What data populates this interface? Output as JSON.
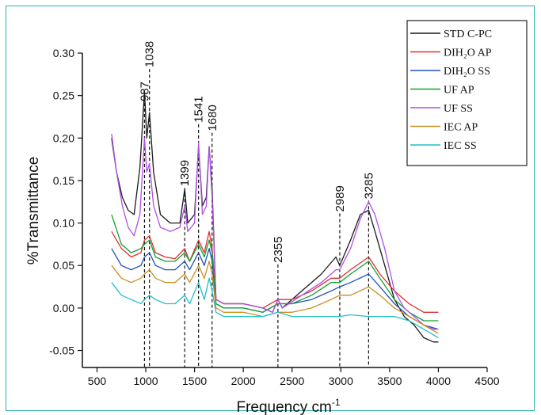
{
  "chart_data": {
    "type": "line",
    "xlabel": "Frequency cm",
    "xlabel_sup": "-1",
    "ylabel": "%Transmittance",
    "xlim": [
      350,
      4500
    ],
    "ylim": [
      -0.07,
      0.3
    ],
    "x_ticks": [
      "500",
      "1000",
      "1500",
      "2000",
      "2500",
      "3000",
      "3500",
      "4000",
      "4500"
    ],
    "x_tick_values": [
      500,
      1000,
      1500,
      2000,
      2500,
      3000,
      3500,
      4000,
      4500
    ],
    "y_ticks": [
      "0.30",
      "0.25",
      "0.20",
      "0.15",
      "0.10",
      "0.05",
      "0.00",
      "-0.05"
    ],
    "y_tick_values": [
      0.3,
      0.25,
      0.2,
      0.15,
      0.1,
      0.05,
      0.0,
      -0.05
    ],
    "peaks": [
      {
        "label": "987",
        "x": 987,
        "label_y": 0.245
      },
      {
        "label": "1038",
        "x": 1038,
        "label_y": 0.285
      },
      {
        "label": "1399",
        "x": 1399,
        "label_y": 0.145
      },
      {
        "label": "1541",
        "x": 1541,
        "label_y": 0.22
      },
      {
        "label": "1680",
        "x": 1680,
        "label_y": 0.21
      },
      {
        "label": "2355",
        "x": 2355,
        "label_y": 0.055
      },
      {
        "label": "2989",
        "x": 2989,
        "label_y": 0.115
      },
      {
        "label": "3285",
        "x": 3285,
        "label_y": 0.13
      }
    ],
    "series": [
      {
        "name": "STD C-PC",
        "color": "#1a1a1a",
        "points": [
          [
            650,
            0.2
          ],
          [
            700,
            0.16
          ],
          [
            760,
            0.13
          ],
          [
            820,
            0.115
          ],
          [
            880,
            0.11
          ],
          [
            940,
            0.165
          ],
          [
            987,
            0.255
          ],
          [
            1010,
            0.2
          ],
          [
            1038,
            0.23
          ],
          [
            1080,
            0.16
          ],
          [
            1150,
            0.11
          ],
          [
            1250,
            0.1
          ],
          [
            1350,
            0.1
          ],
          [
            1399,
            0.14
          ],
          [
            1430,
            0.1
          ],
          [
            1500,
            0.11
          ],
          [
            1541,
            0.19
          ],
          [
            1580,
            0.12
          ],
          [
            1620,
            0.13
          ],
          [
            1650,
            0.19
          ],
          [
            1680,
            0.14
          ],
          [
            1720,
            0.01
          ],
          [
            1800,
            0.005
          ],
          [
            2000,
            0.005
          ],
          [
            2200,
            0.0
          ],
          [
            2300,
            -0.005
          ],
          [
            2355,
            0.01
          ],
          [
            2400,
            0.0
          ],
          [
            2600,
            0.02
          ],
          [
            2800,
            0.04
          ],
          [
            2950,
            0.06
          ],
          [
            2989,
            0.05
          ],
          [
            3100,
            0.08
          ],
          [
            3200,
            0.11
          ],
          [
            3285,
            0.115
          ],
          [
            3350,
            0.09
          ],
          [
            3450,
            0.05
          ],
          [
            3550,
            0.01
          ],
          [
            3650,
            -0.01
          ],
          [
            3750,
            -0.02
          ],
          [
            3850,
            -0.035
          ],
          [
            3950,
            -0.04
          ],
          [
            4000,
            -0.04
          ]
        ]
      },
      {
        "name": "DIH₂O AP",
        "color": "#e03030",
        "points": [
          [
            650,
            0.09
          ],
          [
            750,
            0.07
          ],
          [
            850,
            0.06
          ],
          [
            950,
            0.065
          ],
          [
            987,
            0.08
          ],
          [
            1038,
            0.085
          ],
          [
            1100,
            0.065
          ],
          [
            1200,
            0.06
          ],
          [
            1300,
            0.058
          ],
          [
            1399,
            0.07
          ],
          [
            1450,
            0.055
          ],
          [
            1541,
            0.08
          ],
          [
            1600,
            0.065
          ],
          [
            1650,
            0.09
          ],
          [
            1680,
            0.07
          ],
          [
            1720,
            0.01
          ],
          [
            1800,
            0.005
          ],
          [
            2000,
            0.005
          ],
          [
            2200,
            0.0
          ],
          [
            2355,
            0.01
          ],
          [
            2500,
            0.01
          ],
          [
            2700,
            0.02
          ],
          [
            2900,
            0.035
          ],
          [
            2989,
            0.035
          ],
          [
            3100,
            0.045
          ],
          [
            3285,
            0.06
          ],
          [
            3400,
            0.04
          ],
          [
            3550,
            0.02
          ],
          [
            3700,
            0.005
          ],
          [
            3850,
            -0.005
          ],
          [
            4000,
            -0.005
          ]
        ]
      },
      {
        "name": "DIH₂O SS",
        "color": "#2050c0",
        "points": [
          [
            650,
            0.07
          ],
          [
            750,
            0.05
          ],
          [
            850,
            0.045
          ],
          [
            950,
            0.05
          ],
          [
            987,
            0.06
          ],
          [
            1038,
            0.065
          ],
          [
            1100,
            0.05
          ],
          [
            1200,
            0.045
          ],
          [
            1300,
            0.045
          ],
          [
            1399,
            0.055
          ],
          [
            1450,
            0.045
          ],
          [
            1541,
            0.065
          ],
          [
            1600,
            0.05
          ],
          [
            1650,
            0.07
          ],
          [
            1680,
            0.055
          ],
          [
            1720,
            0.005
          ],
          [
            1800,
            0.0
          ],
          [
            2000,
            0.0
          ],
          [
            2200,
            -0.005
          ],
          [
            2355,
            0.005
          ],
          [
            2500,
            0.005
          ],
          [
            2700,
            0.01
          ],
          [
            2900,
            0.02
          ],
          [
            2989,
            0.025
          ],
          [
            3100,
            0.03
          ],
          [
            3285,
            0.04
          ],
          [
            3400,
            0.025
          ],
          [
            3550,
            0.005
          ],
          [
            3700,
            -0.01
          ],
          [
            3850,
            -0.02
          ],
          [
            4000,
            -0.025
          ]
        ]
      },
      {
        "name": "UF AP",
        "color": "#10a030",
        "points": [
          [
            650,
            0.11
          ],
          [
            750,
            0.075
          ],
          [
            850,
            0.065
          ],
          [
            950,
            0.07
          ],
          [
            987,
            0.075
          ],
          [
            1038,
            0.08
          ],
          [
            1100,
            0.06
          ],
          [
            1200,
            0.055
          ],
          [
            1300,
            0.055
          ],
          [
            1399,
            0.065
          ],
          [
            1450,
            0.055
          ],
          [
            1541,
            0.075
          ],
          [
            1600,
            0.06
          ],
          [
            1650,
            0.08
          ],
          [
            1680,
            0.065
          ],
          [
            1720,
            0.005
          ],
          [
            1800,
            0.0
          ],
          [
            2000,
            0.0
          ],
          [
            2200,
            -0.005
          ],
          [
            2355,
            0.005
          ],
          [
            2500,
            0.005
          ],
          [
            2700,
            0.015
          ],
          [
            2900,
            0.03
          ],
          [
            2989,
            0.03
          ],
          [
            3100,
            0.04
          ],
          [
            3285,
            0.055
          ],
          [
            3400,
            0.035
          ],
          [
            3550,
            0.01
          ],
          [
            3700,
            -0.005
          ],
          [
            3850,
            -0.015
          ],
          [
            4000,
            -0.015
          ]
        ]
      },
      {
        "name": "UF SS",
        "color": "#b050e8",
        "points": [
          [
            650,
            0.205
          ],
          [
            700,
            0.16
          ],
          [
            760,
            0.12
          ],
          [
            820,
            0.095
          ],
          [
            880,
            0.085
          ],
          [
            940,
            0.11
          ],
          [
            987,
            0.2
          ],
          [
            1010,
            0.16
          ],
          [
            1038,
            0.17
          ],
          [
            1080,
            0.12
          ],
          [
            1150,
            0.095
          ],
          [
            1250,
            0.09
          ],
          [
            1350,
            0.095
          ],
          [
            1399,
            0.12
          ],
          [
            1430,
            0.09
          ],
          [
            1500,
            0.1
          ],
          [
            1541,
            0.195
          ],
          [
            1580,
            0.11
          ],
          [
            1620,
            0.12
          ],
          [
            1650,
            0.19
          ],
          [
            1680,
            0.13
          ],
          [
            1720,
            0.01
          ],
          [
            1800,
            0.005
          ],
          [
            2000,
            0.005
          ],
          [
            2200,
            0.0
          ],
          [
            2300,
            -0.005
          ],
          [
            2355,
            0.01
          ],
          [
            2400,
            0.0
          ],
          [
            2600,
            0.015
          ],
          [
            2800,
            0.03
          ],
          [
            2950,
            0.045
          ],
          [
            2989,
            0.045
          ],
          [
            3100,
            0.07
          ],
          [
            3200,
            0.105
          ],
          [
            3285,
            0.125
          ],
          [
            3350,
            0.11
          ],
          [
            3450,
            0.07
          ],
          [
            3550,
            0.02
          ],
          [
            3650,
            0.0
          ],
          [
            3750,
            -0.01
          ],
          [
            3850,
            -0.02
          ],
          [
            3950,
            -0.025
          ],
          [
            4000,
            -0.025
          ]
        ]
      },
      {
        "name": "IEC AP",
        "color": "#c89020",
        "points": [
          [
            650,
            0.05
          ],
          [
            750,
            0.035
          ],
          [
            850,
            0.03
          ],
          [
            950,
            0.035
          ],
          [
            987,
            0.04
          ],
          [
            1038,
            0.045
          ],
          [
            1100,
            0.035
          ],
          [
            1200,
            0.03
          ],
          [
            1300,
            0.03
          ],
          [
            1399,
            0.04
          ],
          [
            1450,
            0.03
          ],
          [
            1541,
            0.05
          ],
          [
            1600,
            0.035
          ],
          [
            1650,
            0.055
          ],
          [
            1680,
            0.04
          ],
          [
            1720,
            0.0
          ],
          [
            1800,
            -0.005
          ],
          [
            2000,
            -0.005
          ],
          [
            2200,
            -0.01
          ],
          [
            2355,
            -0.005
          ],
          [
            2500,
            -0.005
          ],
          [
            2700,
            0.0
          ],
          [
            2900,
            0.01
          ],
          [
            2989,
            0.015
          ],
          [
            3100,
            0.015
          ],
          [
            3285,
            0.025
          ],
          [
            3400,
            0.015
          ],
          [
            3550,
            0.0
          ],
          [
            3700,
            -0.01
          ],
          [
            3850,
            -0.02
          ],
          [
            4000,
            -0.03
          ]
        ]
      },
      {
        "name": "IEC SS",
        "color": "#20c0c8",
        "points": [
          [
            650,
            0.03
          ],
          [
            750,
            0.015
          ],
          [
            850,
            0.01
          ],
          [
            950,
            0.005
          ],
          [
            987,
            0.01
          ],
          [
            1038,
            0.015
          ],
          [
            1100,
            0.01
          ],
          [
            1200,
            0.005
          ],
          [
            1300,
            0.005
          ],
          [
            1399,
            0.015
          ],
          [
            1450,
            0.005
          ],
          [
            1541,
            0.03
          ],
          [
            1600,
            0.01
          ],
          [
            1650,
            0.035
          ],
          [
            1680,
            0.02
          ],
          [
            1720,
            -0.005
          ],
          [
            1800,
            -0.01
          ],
          [
            2000,
            -0.01
          ],
          [
            2200,
            -0.01
          ],
          [
            2355,
            -0.005
          ],
          [
            2500,
            -0.01
          ],
          [
            2700,
            -0.01
          ],
          [
            2900,
            -0.01
          ],
          [
            2989,
            -0.01
          ],
          [
            3100,
            -0.008
          ],
          [
            3285,
            -0.01
          ],
          [
            3400,
            -0.01
          ],
          [
            3550,
            -0.01
          ],
          [
            3700,
            -0.015
          ],
          [
            3850,
            -0.025
          ],
          [
            4000,
            -0.035
          ]
        ]
      }
    ]
  }
}
